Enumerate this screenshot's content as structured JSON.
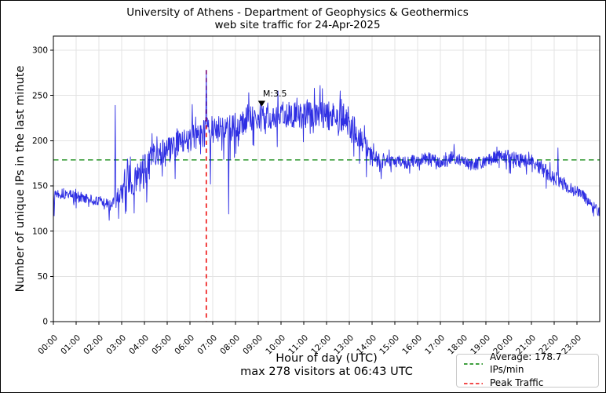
{
  "chart_data": {
    "type": "line",
    "title": "University of Athens - Department of Geophysics & Geothermics",
    "subtitle": "web site traffic for 24-Apr-2025",
    "xlabel": "Hour of day (UTC)",
    "max_note": "max 278 visitors at 06:43 UTC",
    "ylabel": "Number of unique IPs in the last minute",
    "x_tick_labels": [
      "00:00",
      "01:00",
      "02:00",
      "03:00",
      "04:00",
      "05:00",
      "06:00",
      "07:00",
      "08:00",
      "09:00",
      "10:00",
      "11:00",
      "12:00",
      "13:00",
      "14:00",
      "15:00",
      "16:00",
      "17:00",
      "18:00",
      "19:00",
      "20:00",
      "21:00",
      "22:00",
      "23:00"
    ],
    "y_ticks": [
      0,
      50,
      100,
      150,
      200,
      250,
      300
    ],
    "ylim": [
      0,
      315.6
    ],
    "xlim_hours": [
      0,
      24
    ],
    "grid": true,
    "grid_color": "#e3e3e3",
    "series_color": "#0000dd",
    "average_line": {
      "label": "Average: 178.7 IPs/min",
      "value": 178.7,
      "color": "#008000",
      "style": "dashed"
    },
    "peak_line": {
      "label": "Peak Traffic",
      "time": "06:43",
      "time_hours": 6.7167,
      "value": 278,
      "color": "#ee1111",
      "style": "dashed"
    },
    "annotation": {
      "text": "M:3.5",
      "time_hours": 9.15,
      "value": 241,
      "marker": "triangle-down",
      "color": "#000000"
    },
    "legend": {
      "position": "lower-right-outside",
      "entries": [
        {
          "label": "Average: 178.7 IPs/min",
          "color": "#008000",
          "style": "dashed"
        },
        {
          "label": "Peak Traffic",
          "color": "#ee1111",
          "style": "dashed"
        }
      ]
    },
    "series": [
      {
        "name": "unique-ips-per-minute",
        "samples_per_hour": 60,
        "noise_seed": 13,
        "anchors": [
          [
            0,
            143,
            6
          ],
          [
            0.25,
            142,
            6
          ],
          [
            0.5,
            141,
            6
          ],
          [
            0.75,
            140,
            6
          ],
          [
            1,
            138,
            6
          ],
          [
            1.25,
            137,
            6
          ],
          [
            1.5,
            136,
            6
          ],
          [
            1.75,
            134,
            5
          ],
          [
            2,
            133,
            5
          ],
          [
            2.25,
            131,
            5
          ],
          [
            2.5,
            129,
            6
          ],
          [
            2.75,
            131,
            8
          ],
          [
            3,
            148,
            18
          ],
          [
            3.25,
            158,
            24
          ],
          [
            3.5,
            162,
            24
          ],
          [
            3.75,
            158,
            22
          ],
          [
            4,
            168,
            20
          ],
          [
            4.25,
            176,
            18
          ],
          [
            4.5,
            184,
            16
          ],
          [
            4.75,
            188,
            16
          ],
          [
            5,
            191,
            15
          ],
          [
            5.25,
            194,
            15
          ],
          [
            5.5,
            196,
            15
          ],
          [
            5.75,
            199,
            15
          ],
          [
            6,
            203,
            15
          ],
          [
            6.25,
            205,
            15
          ],
          [
            6.5,
            207,
            15
          ],
          [
            6.75,
            210,
            16
          ],
          [
            7,
            214,
            16
          ],
          [
            7.25,
            212,
            16
          ],
          [
            7.5,
            214,
            16
          ],
          [
            7.75,
            211,
            17
          ],
          [
            8,
            217,
            16
          ],
          [
            8.25,
            220,
            16
          ],
          [
            8.5,
            222,
            16
          ],
          [
            8.75,
            223,
            16
          ],
          [
            9,
            224,
            16
          ],
          [
            9.25,
            226,
            15
          ],
          [
            9.5,
            228,
            15
          ],
          [
            9.75,
            227,
            15
          ],
          [
            10,
            228,
            15
          ],
          [
            10.25,
            229,
            14
          ],
          [
            10.5,
            228,
            14
          ],
          [
            10.75,
            227,
            15
          ],
          [
            11,
            228,
            15
          ],
          [
            11.25,
            229,
            15
          ],
          [
            11.5,
            230,
            15
          ],
          [
            11.75,
            229,
            16
          ],
          [
            12,
            228,
            16
          ],
          [
            12.25,
            226,
            17
          ],
          [
            12.5,
            224,
            18
          ],
          [
            12.75,
            228,
            18
          ],
          [
            13,
            220,
            16
          ],
          [
            13.25,
            212,
            15
          ],
          [
            13.5,
            203,
            13
          ],
          [
            13.75,
            194,
            11
          ],
          [
            14,
            186,
            9
          ],
          [
            14.25,
            180,
            8
          ],
          [
            14.5,
            178,
            8
          ],
          [
            14.75,
            177,
            7
          ],
          [
            15,
            177,
            7
          ],
          [
            15.25,
            176,
            7
          ],
          [
            15.5,
            176,
            7
          ],
          [
            15.75,
            177,
            7
          ],
          [
            16,
            178,
            7
          ],
          [
            16.25,
            179,
            7
          ],
          [
            16.5,
            180,
            8
          ],
          [
            16.75,
            176,
            8
          ],
          [
            17,
            174,
            7
          ],
          [
            17.25,
            178,
            8
          ],
          [
            17.5,
            182,
            8
          ],
          [
            17.75,
            179,
            7
          ],
          [
            18,
            176,
            7
          ],
          [
            18.25,
            174,
            7
          ],
          [
            18.5,
            174,
            7
          ],
          [
            18.75,
            176,
            7
          ],
          [
            19,
            178,
            8
          ],
          [
            19.25,
            180,
            7
          ],
          [
            19.5,
            182,
            7
          ],
          [
            19.75,
            183,
            7
          ],
          [
            20,
            182,
            8
          ],
          [
            20.25,
            180,
            8
          ],
          [
            20.5,
            178,
            8
          ],
          [
            20.75,
            178,
            8
          ],
          [
            21,
            178,
            8
          ],
          [
            21.25,
            174,
            9
          ],
          [
            21.5,
            169,
            9
          ],
          [
            21.75,
            164,
            9
          ],
          [
            22,
            159,
            9
          ],
          [
            22.25,
            155,
            8
          ],
          [
            22.5,
            151,
            8
          ],
          [
            22.75,
            147,
            7
          ],
          [
            23,
            143,
            7
          ],
          [
            23.25,
            138,
            7
          ],
          [
            23.5,
            133,
            6
          ],
          [
            23.75,
            127,
            6
          ],
          [
            24,
            121,
            6
          ]
        ],
        "spikes": [
          [
            0.03,
            117
          ],
          [
            0.9,
            129
          ],
          [
            1.55,
            127
          ],
          [
            2.45,
            112
          ],
          [
            2.72,
            239
          ],
          [
            2.87,
            114
          ],
          [
            3.2,
            122
          ],
          [
            3.55,
            120
          ],
          [
            4.1,
            132
          ],
          [
            5.35,
            158
          ],
          [
            6.1,
            240
          ],
          [
            6.7167,
            278
          ],
          [
            6.9,
            152
          ],
          [
            7.7,
            119
          ],
          [
            8.58,
            253
          ],
          [
            9.15,
            241
          ],
          [
            9.86,
            255
          ],
          [
            11.72,
            261
          ],
          [
            12.6,
            255
          ],
          [
            13.75,
            160
          ],
          [
            14.4,
            158
          ],
          [
            17.6,
            196
          ],
          [
            22.16,
            192
          ]
        ]
      }
    ]
  }
}
